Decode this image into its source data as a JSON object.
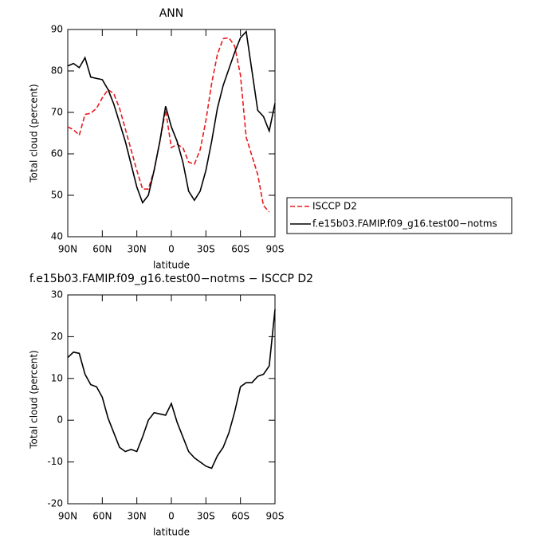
{
  "chart_data": [
    {
      "type": "line",
      "title": "ANN",
      "xlabel": "latitude",
      "ylabel": "Total cloud (percent)",
      "x": [
        90,
        85,
        80,
        75,
        70,
        65,
        60,
        55,
        50,
        45,
        40,
        35,
        30,
        25,
        20,
        15,
        10,
        5,
        0,
        -5,
        -10,
        -15,
        -20,
        -25,
        -30,
        -35,
        -40,
        -45,
        -50,
        -55,
        -60,
        -65,
        -70,
        -75,
        -80,
        -85,
        -90
      ],
      "xlim": [
        90,
        -90
      ],
      "xticks": [
        {
          "value": 90,
          "label": "90N"
        },
        {
          "value": 60,
          "label": "60N"
        },
        {
          "value": 30,
          "label": "30N"
        },
        0,
        {
          "value": -30,
          "label": "30S"
        },
        {
          "value": -60,
          "label": "60S"
        },
        {
          "value": -90,
          "label": "90S"
        }
      ],
      "ylim": [
        40,
        90
      ],
      "yticks": [
        40,
        50,
        60,
        70,
        80,
        90
      ],
      "legend": "right",
      "series": [
        {
          "name": "ISCCP D2",
          "color": "#e8191c",
          "dash": true,
          "values": [
            66.5,
            65.8,
            64.5,
            69.5,
            69.8,
            71,
            73.5,
            75.5,
            74.5,
            71,
            66,
            61,
            56,
            51.5,
            51.5,
            56,
            63,
            70.5,
            61.5,
            62.3,
            61.5,
            58,
            57.5,
            61,
            68,
            77,
            84,
            87.8,
            88,
            86,
            79,
            64,
            59.5,
            55,
            47.5,
            46,
            null
          ]
        },
        {
          "name": "f.e15b03.FAMIP.f09_g16.test00−notms",
          "color": "#000000",
          "dash": false,
          "values": [
            81.2,
            81.8,
            80.8,
            83.2,
            78.5,
            78.2,
            77.9,
            75.5,
            72,
            67.5,
            63,
            57.5,
            52,
            48.2,
            50,
            56,
            63,
            71.5,
            66.5,
            63,
            58,
            51,
            48.8,
            51,
            56,
            63,
            71,
            76.5,
            80.5,
            84.5,
            88,
            89.5,
            80,
            70.5,
            69,
            65.5,
            72.2
          ]
        }
      ]
    },
    {
      "type": "line",
      "title": "f.e15b03.FAMIP.f09_g16.test00−notms − ISCCP D2",
      "xlabel": "latitude",
      "ylabel": "Total cloud (percent)",
      "x": [
        90,
        85,
        80,
        75,
        70,
        65,
        60,
        55,
        50,
        45,
        40,
        35,
        30,
        25,
        20,
        15,
        10,
        5,
        0,
        -5,
        -10,
        -15,
        -20,
        -25,
        -30,
        -35,
        -40,
        -45,
        -50,
        -55,
        -60,
        -65,
        -70,
        -75,
        -80,
        -85,
        -90
      ],
      "xlim": [
        90,
        -90
      ],
      "xticks": [
        {
          "value": 90,
          "label": "90N"
        },
        {
          "value": 60,
          "label": "60N"
        },
        {
          "value": 30,
          "label": "30N"
        },
        0,
        {
          "value": -30,
          "label": "30S"
        },
        {
          "value": -60,
          "label": "60S"
        },
        {
          "value": -90,
          "label": "90S"
        }
      ],
      "ylim": [
        -20,
        30
      ],
      "yticks": [
        -20,
        -10,
        0,
        10,
        20,
        30
      ],
      "series": [
        {
          "color": "#000000",
          "dash": false,
          "values": [
            15,
            16.3,
            16,
            11,
            8.5,
            8,
            5.5,
            0.5,
            -3,
            -6.5,
            -7.5,
            -7,
            -7.5,
            -4,
            0,
            1.8,
            1.5,
            1.2,
            4,
            -0.5,
            -4,
            -7.5,
            -9,
            -10,
            -11,
            -11.5,
            -8.5,
            -6.5,
            -3,
            2,
            8,
            9,
            9,
            10.5,
            11,
            13,
            26.5
          ]
        }
      ]
    }
  ]
}
